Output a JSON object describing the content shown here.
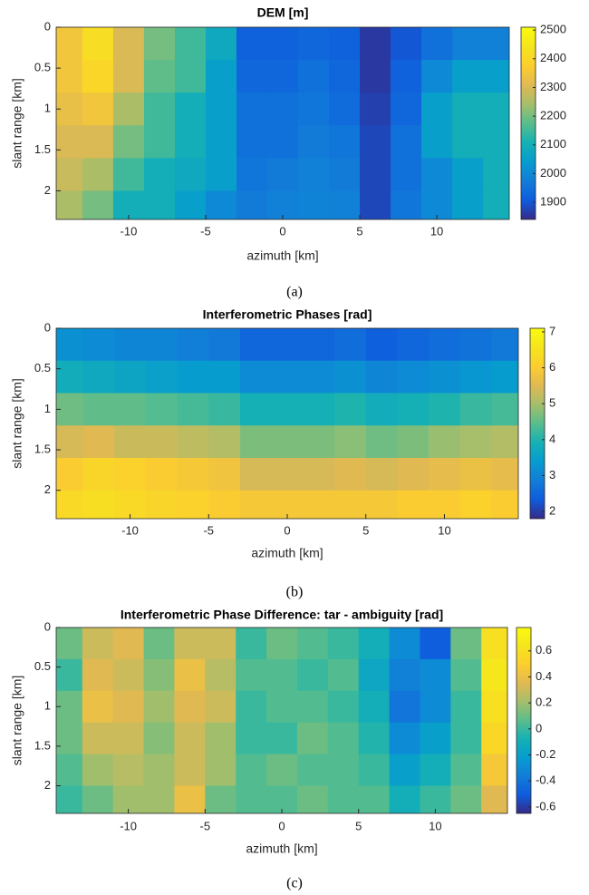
{
  "chart_data": [
    {
      "type": "heatmap",
      "title": "DEM [m]",
      "xlabel": "azimuth [km]",
      "ylabel": "slant range [km]",
      "caption": "(a)",
      "x": [
        -14,
        -12,
        -10,
        -8,
        -6,
        -4,
        -2,
        0,
        2,
        4,
        6,
        8,
        10,
        12,
        14
      ],
      "y": [
        0.2,
        0.6,
        1.0,
        1.4,
        1.8,
        2.2
      ],
      "values": [
        [
          2350,
          2420,
          2300,
          2200,
          2150,
          2080,
          1920,
          1920,
          1930,
          1920,
          1860,
          1900,
          1950,
          1980,
          1980
        ],
        [
          2350,
          2400,
          2300,
          2180,
          2150,
          2050,
          1930,
          1930,
          1950,
          1930,
          1860,
          1920,
          2000,
          2050,
          2050
        ],
        [
          2330,
          2350,
          2250,
          2150,
          2100,
          2050,
          1950,
          1950,
          1960,
          1940,
          1870,
          1930,
          2050,
          2100,
          2100
        ],
        [
          2300,
          2300,
          2200,
          2150,
          2100,
          2050,
          1950,
          1950,
          1970,
          1960,
          1880,
          1950,
          2050,
          2100,
          2100
        ],
        [
          2280,
          2250,
          2150,
          2100,
          2080,
          2050,
          1960,
          1970,
          1980,
          1970,
          1880,
          1950,
          2000,
          2050,
          2100
        ],
        [
          2250,
          2200,
          2100,
          2100,
          2050,
          2000,
          1970,
          1980,
          1990,
          1980,
          1880,
          1960,
          2000,
          2050,
          2100
        ]
      ],
      "xlim": [
        -14.7,
        14.7
      ],
      "xticks": [
        -10,
        -5,
        0,
        5,
        10
      ],
      "ylim": [
        0,
        2.35
      ],
      "yticks": [
        0,
        0.5,
        1,
        1.5,
        2
      ],
      "y_reversed": true,
      "clim": [
        1840,
        2510
      ],
      "cticks": [
        1900,
        2000,
        2100,
        2200,
        2300,
        2400,
        2500
      ],
      "colormap": "parula"
    },
    {
      "type": "heatmap",
      "title": "Interferometric Phases [rad]",
      "xlabel": "azimuth [km]",
      "ylabel": "slant range [km]",
      "caption": "(b)",
      "x": [
        -14,
        -12,
        -10,
        -8,
        -6,
        -4,
        -2,
        0,
        2,
        4,
        6,
        8,
        10,
        12,
        14
      ],
      "y": [
        0.2,
        0.6,
        1.0,
        1.4,
        1.8,
        2.2
      ],
      "values": [
        [
          3.2,
          3.1,
          3.0,
          3.0,
          2.9,
          2.8,
          2.5,
          2.5,
          2.5,
          2.6,
          2.4,
          2.5,
          2.6,
          2.7,
          2.8
        ],
        [
          3.8,
          3.7,
          3.6,
          3.5,
          3.4,
          3.4,
          3.1,
          3.1,
          3.1,
          3.2,
          3.0,
          3.1,
          3.2,
          3.3,
          3.4
        ],
        [
          4.6,
          4.5,
          4.5,
          4.4,
          4.3,
          4.2,
          3.9,
          3.9,
          3.9,
          4.0,
          3.8,
          3.9,
          4.0,
          4.2,
          4.3
        ],
        [
          5.4,
          5.5,
          5.3,
          5.3,
          5.2,
          5.1,
          4.7,
          4.7,
          4.7,
          4.8,
          4.6,
          4.7,
          4.9,
          5.0,
          5.1
        ],
        [
          6.0,
          6.2,
          6.1,
          6.0,
          5.9,
          5.8,
          5.4,
          5.4,
          5.4,
          5.5,
          5.4,
          5.5,
          5.6,
          5.7,
          5.6
        ],
        [
          6.3,
          6.4,
          6.3,
          6.2,
          6.1,
          6.0,
          5.9,
          5.9,
          5.9,
          5.9,
          5.9,
          6.0,
          6.0,
          6.1,
          6.0
        ]
      ],
      "xlim": [
        -14.7,
        14.7
      ],
      "xticks": [
        -10,
        -5,
        0,
        5,
        10
      ],
      "ylim": [
        0,
        2.35
      ],
      "yticks": [
        0,
        0.5,
        1,
        1.5,
        2
      ],
      "y_reversed": true,
      "clim": [
        1.8,
        7.1
      ],
      "cticks": [
        2,
        3,
        4,
        5,
        6,
        7
      ],
      "colormap": "parula"
    },
    {
      "type": "heatmap",
      "title": "Interferometric Phase Difference: tar - ambiguity [rad]",
      "xlabel": "azimuth [km]",
      "ylabel": "slant range [km]",
      "caption": "(c)",
      "x": [
        -14,
        -12,
        -10,
        -8,
        -6,
        -4,
        -2,
        0,
        2,
        4,
        6,
        8,
        10,
        12,
        14
      ],
      "y": [
        0.2,
        0.6,
        1.0,
        1.4,
        1.8,
        2.2
      ],
      "values": [
        [
          0.1,
          0.3,
          0.35,
          0.1,
          0.3,
          0.3,
          0.0,
          0.1,
          0.05,
          0.0,
          -0.1,
          -0.3,
          -0.5,
          0.1,
          0.6
        ],
        [
          0.0,
          0.35,
          0.3,
          0.15,
          0.4,
          0.25,
          0.05,
          0.05,
          0.0,
          0.05,
          -0.15,
          -0.35,
          -0.3,
          0.05,
          0.65
        ],
        [
          0.1,
          0.4,
          0.35,
          0.2,
          0.35,
          0.3,
          0.0,
          0.05,
          0.05,
          0.0,
          -0.1,
          -0.4,
          -0.3,
          0.0,
          0.6
        ],
        [
          0.1,
          0.3,
          0.3,
          0.15,
          0.3,
          0.2,
          0.0,
          0.0,
          0.1,
          0.05,
          -0.05,
          -0.3,
          -0.2,
          0.0,
          0.55
        ],
        [
          0.05,
          0.2,
          0.25,
          0.2,
          0.3,
          0.2,
          0.05,
          0.1,
          0.05,
          0.05,
          0.0,
          -0.2,
          -0.1,
          0.05,
          0.45
        ],
        [
          0.0,
          0.1,
          0.2,
          0.2,
          0.4,
          0.1,
          0.05,
          0.05,
          0.1,
          0.05,
          0.05,
          -0.1,
          0.0,
          0.1,
          0.35
        ]
      ],
      "xlim": [
        -14.7,
        14.7
      ],
      "xticks": [
        -10,
        -5,
        0,
        5,
        10
      ],
      "ylim": [
        0,
        2.35
      ],
      "yticks": [
        0,
        0.5,
        1,
        1.5,
        2
      ],
      "y_reversed": true,
      "clim": [
        -0.65,
        0.78
      ],
      "cticks": [
        -0.6,
        -0.4,
        -0.2,
        0,
        0.2,
        0.4,
        0.6
      ],
      "colormap": "parula"
    }
  ]
}
